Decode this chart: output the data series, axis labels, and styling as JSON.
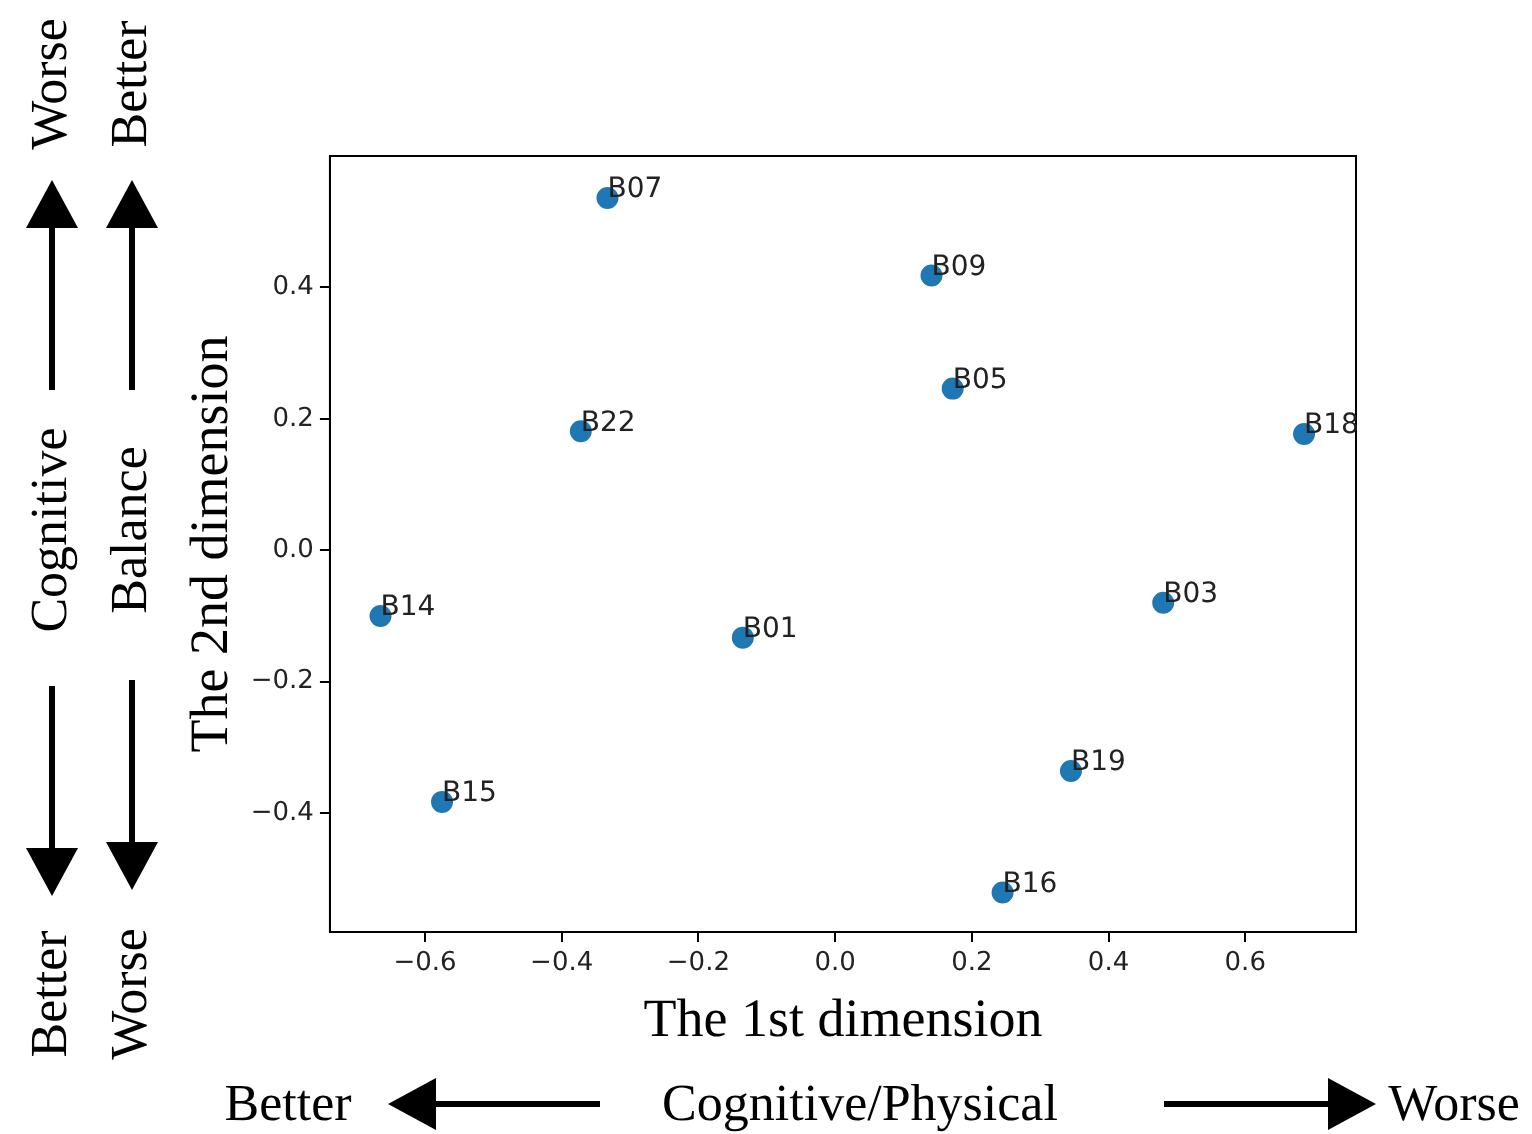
{
  "chart_data": {
    "type": "scatter",
    "xlabel": "The 1st dimension",
    "ylabel": "The 2nd dimension",
    "x": [
      -0.333,
      0.141,
      0.172,
      -0.372,
      0.686,
      -0.665,
      -0.135,
      0.48,
      0.345,
      -0.575,
      0.245
    ],
    "values": [
      0.536,
      0.418,
      0.246,
      0.181,
      0.177,
      -0.1,
      -0.133,
      -0.08,
      -0.336,
      -0.383,
      -0.521
    ],
    "value_labels": [
      "B07",
      "B09",
      "B05",
      "B22",
      "B18",
      "B14",
      "B01",
      "B03",
      "B19",
      "B15",
      "B16"
    ],
    "color": "#1f77b4",
    "marker": "circle",
    "grid": false,
    "legend": false,
    "xlim": [
      -0.739,
      0.762
    ],
    "ylim": [
      -0.581,
      0.6
    ],
    "xticks": [
      {
        "value": -0.6,
        "label": "−0.6"
      },
      {
        "value": -0.4,
        "label": "−0.4"
      },
      {
        "value": -0.2,
        "label": "−0.2"
      },
      {
        "value": 0,
        "label": "0.0"
      },
      {
        "value": 0.2,
        "label": "0.2"
      },
      {
        "value": 0.4,
        "label": "0.4"
      },
      {
        "value": 0.6,
        "label": "0.6"
      }
    ],
    "yticks": [
      {
        "value": -0.4,
        "label": "−0.4"
      },
      {
        "value": -0.2,
        "label": "−0.2"
      },
      {
        "value": 0,
        "label": "0.0"
      },
      {
        "value": 0.2,
        "label": "0.2"
      },
      {
        "value": 0.4,
        "label": "0.4"
      }
    ],
    "annotations": [
      "Worse",
      "Cognitive",
      "Better",
      "Better",
      "Balance",
      "Worse",
      "Better",
      "Cognitive/Physical",
      "Worse"
    ]
  }
}
